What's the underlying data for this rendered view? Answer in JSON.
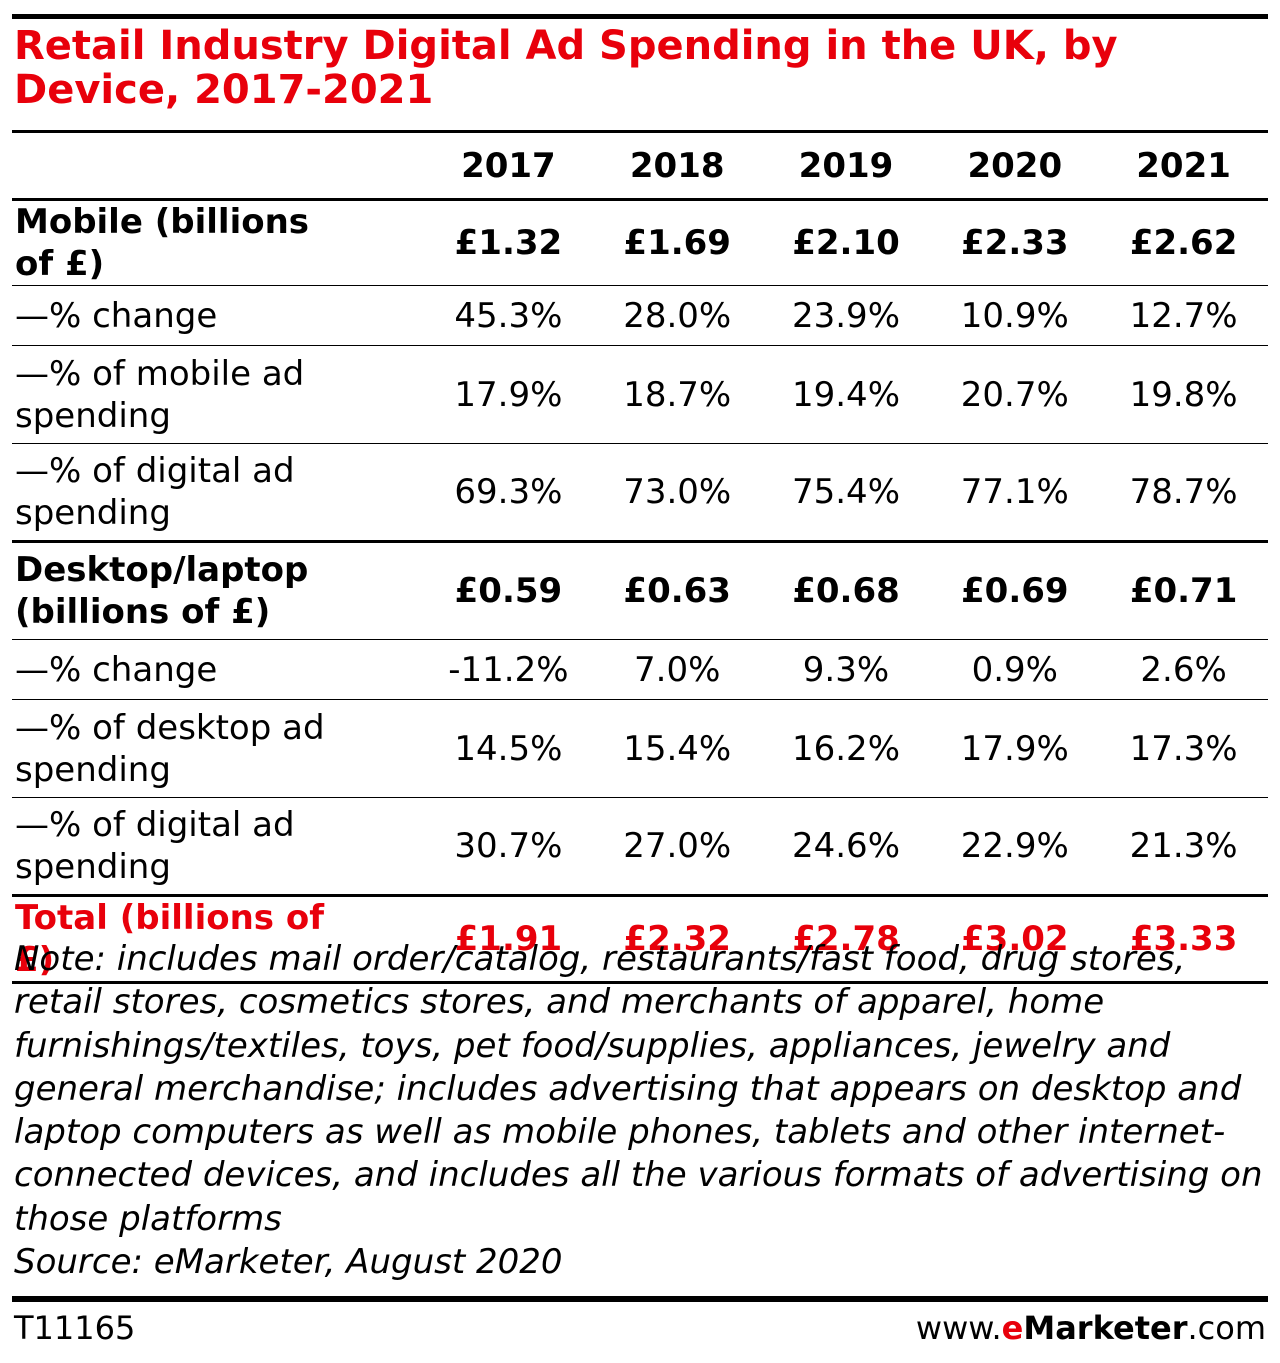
{
  "title": "Retail Industry Digital Ad Spending in the UK, by Device, 2017-2021",
  "chart_data": {
    "type": "table",
    "columns": [
      "2017",
      "2018",
      "2019",
      "2020",
      "2021"
    ],
    "rows": [
      {
        "label": "Mobile (billions of £)",
        "values": [
          "£1.32",
          "£1.69",
          "£2.10",
          "£2.33",
          "£2.62"
        ]
      },
      {
        "label": "—% change",
        "values": [
          "45.3%",
          "28.0%",
          "23.9%",
          "10.9%",
          "12.7%"
        ]
      },
      {
        "label": "—% of mobile ad spending",
        "values": [
          "17.9%",
          "18.7%",
          "19.4%",
          "20.7%",
          "19.8%"
        ]
      },
      {
        "label": "—% of digital ad spending",
        "values": [
          "69.3%",
          "73.0%",
          "75.4%",
          "77.1%",
          "78.7%"
        ]
      },
      {
        "label": "Desktop/laptop (billions of £)",
        "values": [
          "£0.59",
          "£0.63",
          "£0.68",
          "£0.69",
          "£0.71"
        ]
      },
      {
        "label": "—% change",
        "values": [
          "-11.2%",
          "7.0%",
          "9.3%",
          "0.9%",
          "2.6%"
        ]
      },
      {
        "label": "—% of desktop ad spending",
        "values": [
          "14.5%",
          "15.4%",
          "16.2%",
          "17.9%",
          "17.3%"
        ]
      },
      {
        "label": "—% of digital ad spending",
        "values": [
          "30.7%",
          "27.0%",
          "24.6%",
          "22.9%",
          "21.3%"
        ]
      },
      {
        "label": "Total (billions of £)",
        "values": [
          "£1.91",
          "£2.32",
          "£2.78",
          "£3.02",
          "£3.33"
        ]
      }
    ]
  },
  "note": "Note: includes mail order/catalog, restaurants/fast food, drug stores, retail stores, cosmetics stores, and merchants of apparel, home furnishings/textiles, toys, pet food/supplies, appliances, jewelry and general merchandise; includes advertising that appears on desktop and laptop computers as well as mobile phones, tablets and other internet-connected devices, and includes all the various formats of advertising on those platforms",
  "source": "Source: eMarketer, August 2020",
  "table_id": "T11165",
  "brand": {
    "prefix": "www.",
    "e": "e",
    "name": "Marketer",
    "suffix": ".com"
  }
}
